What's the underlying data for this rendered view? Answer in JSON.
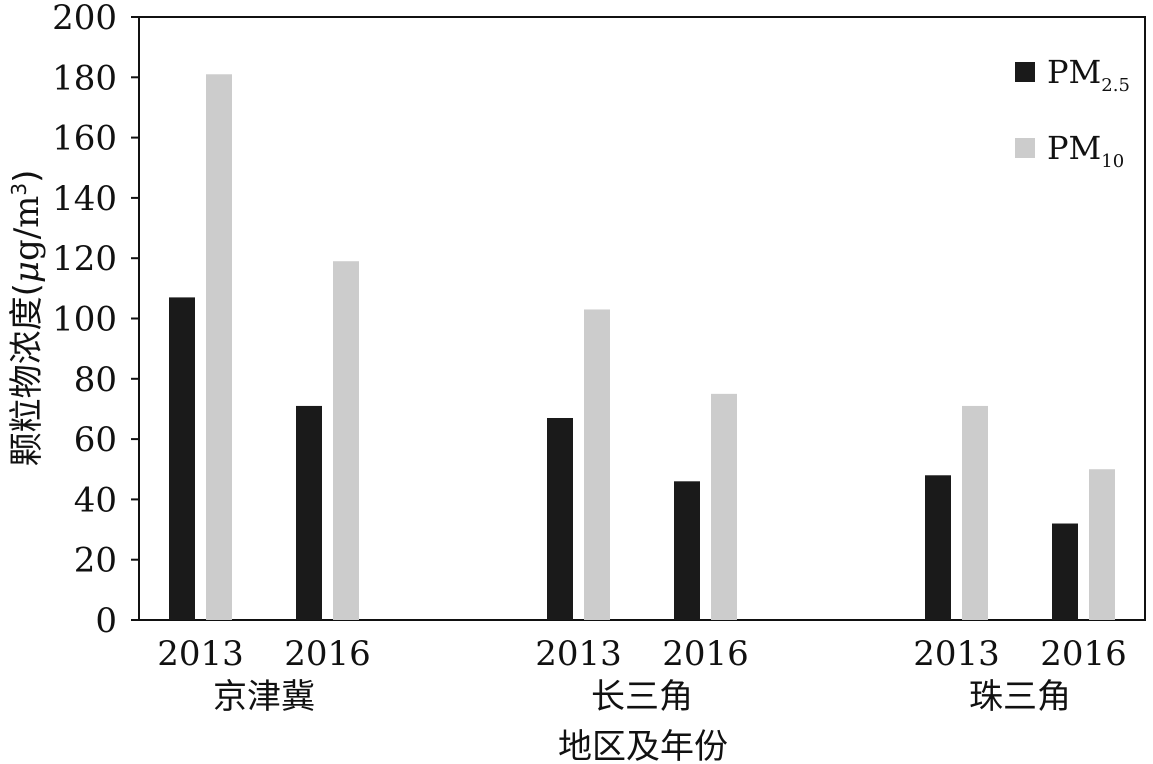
{
  "chart_data": {
    "type": "bar",
    "title": "",
    "xlabel": "地区及年份",
    "ylabel": "颗粒物浓度(μg/m³)",
    "ylabel_parts": {
      "main": "颗粒物浓度(",
      "mu": "μ",
      "unit": "g/m",
      "sup": "3",
      "close": ")"
    },
    "ylim": [
      0,
      200
    ],
    "yticks": [
      0,
      20,
      40,
      60,
      80,
      100,
      120,
      140,
      160,
      180,
      200
    ],
    "groups": [
      {
        "region": "京津冀",
        "years": [
          "2013",
          "2016"
        ]
      },
      {
        "region": "长三角",
        "years": [
          "2013",
          "2016"
        ]
      },
      {
        "region": "珠三角",
        "years": [
          "2013",
          "2016"
        ]
      }
    ],
    "categories": [
      "京津冀 2013",
      "京津冀 2016",
      "长三角 2013",
      "长三角 2016",
      "珠三角 2013",
      "珠三角 2016"
    ],
    "series": [
      {
        "name": "PM2.5",
        "name_main": "PM",
        "name_sub": "2.5",
        "color": "#1a1a1a",
        "values": [
          107,
          71,
          67,
          46,
          48,
          32
        ]
      },
      {
        "name": "PM10",
        "name_main": "PM",
        "name_sub": "10",
        "color": "#cccccc",
        "values": [
          181,
          119,
          103,
          75,
          71,
          50
        ]
      }
    ],
    "legend_position": "top-right",
    "grid": false
  }
}
